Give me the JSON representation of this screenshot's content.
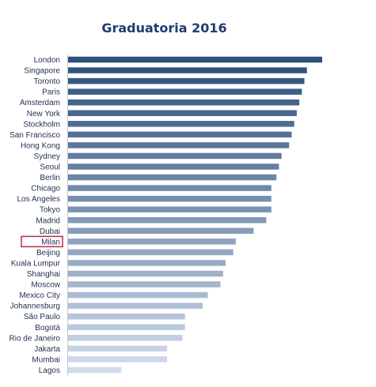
{
  "chart_data": {
    "type": "bar",
    "orientation": "horizontal",
    "title": "Graduatoria 2016",
    "xlabel": "",
    "ylabel": "",
    "grid": false,
    "legend": "none",
    "xlim": [
      0,
      100
    ],
    "categories": [
      "London",
      "Singapore",
      "Toronto",
      "Paris",
      "Amsterdam",
      "New York",
      "Stockholm",
      "San Francisco",
      "Hong Kong",
      "Sydney",
      "Seoul",
      "Berlin",
      "Chicago",
      "Los Angeles",
      "Tokyo",
      "Madrid",
      "Dubai",
      "Milan",
      "Beijing",
      "Kuala Lumpur",
      "Shanghai",
      "Moscow",
      "Mexico City",
      "Johannesburg",
      "São Paulo",
      "Bogotá",
      "Rio de Janeiro",
      "Jakarta",
      "Mumbai",
      "Lagos"
    ],
    "values": [
      100,
      94,
      93,
      92,
      91,
      90,
      89,
      88,
      87,
      84,
      83,
      82,
      80,
      80,
      80,
      78,
      73,
      66,
      65,
      62,
      61,
      60,
      55,
      53,
      46,
      46,
      45,
      39,
      39,
      21
    ],
    "highlighted_category": "Milan",
    "highlight_color": "#c0264a",
    "color_dark": "#2d4f7c",
    "color_light": "#d2dcec"
  }
}
